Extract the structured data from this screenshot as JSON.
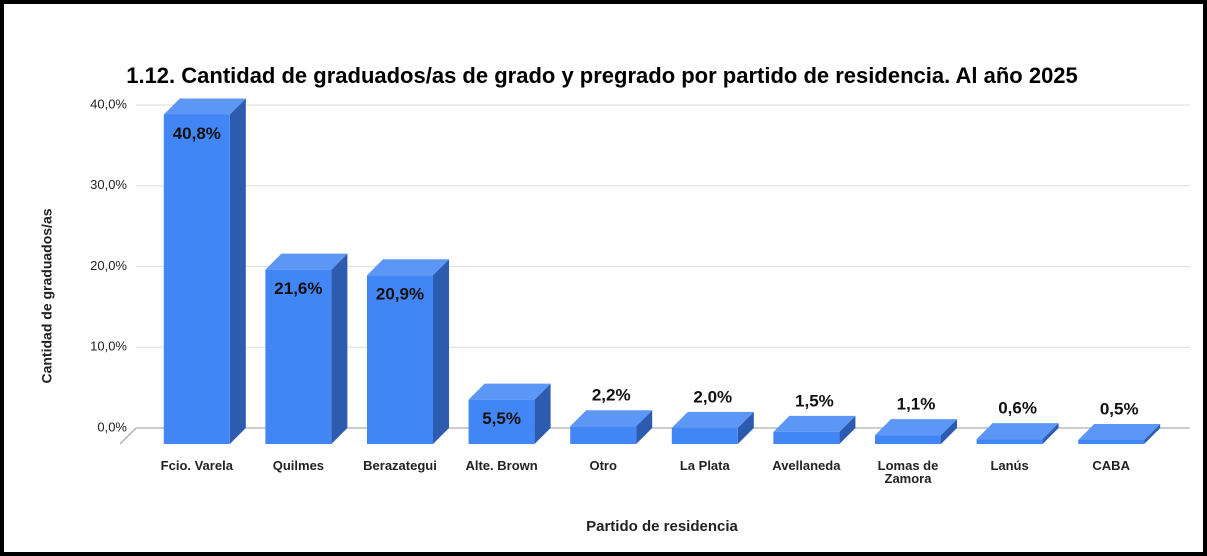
{
  "chart_data": {
    "type": "bar3d",
    "title": "1.12. Cantidad de graduados/as de grado y pregrado por partido de residencia. Al año 2025",
    "y_axis_label": "Cantidad de graduados/as",
    "x_axis_label": "Partido de residencia",
    "categories": [
      "Fcio. Varela",
      "Quilmes",
      "Berazategui",
      "Alte. Brown",
      "Otro",
      "La Plata",
      "Avellaneda",
      "Lomas de Zamora",
      "Lanús",
      "CABA"
    ],
    "values": [
      40.8,
      21.6,
      20.9,
      5.5,
      2.2,
      2.0,
      1.5,
      1.1,
      0.6,
      0.5
    ],
    "value_labels": [
      "40,8%",
      "21,6%",
      "20,9%",
      "5,5%",
      "2,2%",
      "2,0%",
      "1,5%",
      "1,1%",
      "0,6%",
      "0,5%"
    ],
    "color": "#4285f4",
    "ylim": [
      0,
      40
    ],
    "yticks": [
      {
        "value": 0,
        "label": "0,0%"
      },
      {
        "value": 10,
        "label": "10,0%"
      },
      {
        "value": 20,
        "label": "20,0%"
      },
      {
        "value": 30,
        "label": "30,0%"
      },
      {
        "value": 40,
        "label": "40,0%"
      }
    ],
    "grid": true
  }
}
